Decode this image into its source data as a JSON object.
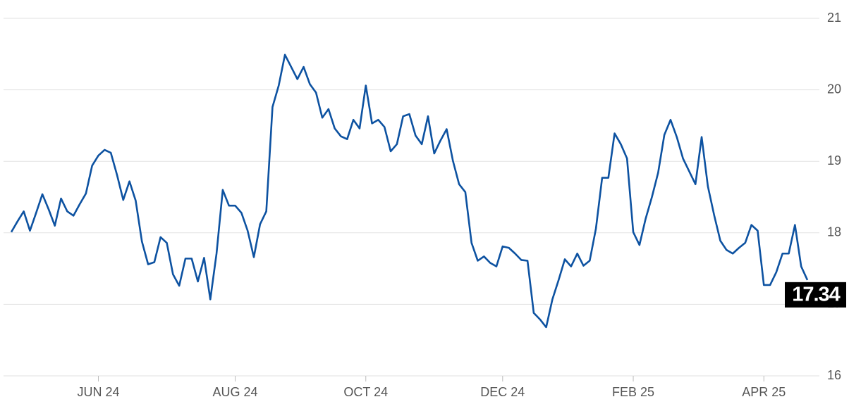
{
  "chart_data": {
    "type": "line",
    "categories": [
      null,
      null,
      null,
      null,
      null,
      null,
      null,
      null,
      null,
      null,
      null,
      null,
      null,
      null,
      "JUN 24",
      null,
      null,
      null,
      null,
      null,
      null,
      null,
      null,
      null,
      null,
      null,
      null,
      null,
      null,
      null,
      null,
      null,
      null,
      null,
      null,
      null,
      "AUG 24",
      null,
      null,
      null,
      null,
      null,
      null,
      null,
      null,
      null,
      null,
      null,
      null,
      null,
      null,
      null,
      null,
      null,
      null,
      null,
      null,
      "OCT 24",
      null,
      null,
      null,
      null,
      null,
      null,
      null,
      null,
      null,
      null,
      null,
      null,
      null,
      null,
      null,
      null,
      null,
      null,
      null,
      null,
      null,
      "DEC 24",
      null,
      null,
      null,
      null,
      null,
      null,
      null,
      null,
      null,
      null,
      null,
      null,
      null,
      null,
      null,
      null,
      null,
      null,
      null,
      null,
      "FEB 25",
      null,
      null,
      null,
      null,
      null,
      null,
      null,
      null,
      null,
      null,
      null,
      null,
      null,
      null,
      null,
      null,
      null,
      null,
      null,
      null,
      "APR 25",
      null,
      null,
      null,
      null,
      null,
      null,
      null
    ],
    "series": [
      {
        "color": "#0d52a1",
        "values": [
          18.01,
          18.16,
          18.3,
          18.03,
          18.28,
          18.54,
          18.33,
          18.1,
          18.48,
          18.3,
          18.24,
          18.4,
          18.55,
          18.94,
          19.08,
          19.16,
          19.12,
          18.81,
          18.46,
          18.72,
          18.45,
          17.88,
          17.56,
          17.59,
          17.94,
          17.86,
          17.42,
          17.26,
          17.64,
          17.64,
          17.32,
          17.65,
          17.07,
          17.71,
          18.6,
          18.38,
          18.38,
          18.28,
          18.03,
          17.66,
          18.12,
          18.3,
          19.76,
          20.06,
          20.49,
          20.32,
          20.15,
          20.32,
          20.08,
          19.96,
          19.61,
          19.73,
          19.46,
          19.35,
          19.31,
          19.58,
          19.46,
          20.06,
          19.53,
          19.58,
          19.48,
          19.14,
          19.24,
          19.63,
          19.66,
          19.36,
          19.24,
          19.63,
          19.11,
          19.29,
          19.45,
          19.01,
          18.68,
          18.57,
          17.86,
          17.61,
          17.67,
          17.58,
          17.53,
          17.81,
          17.79,
          17.71,
          17.62,
          17.61,
          16.88,
          16.79,
          16.68,
          17.07,
          17.34,
          17.63,
          17.53,
          17.71,
          17.54,
          17.61,
          18.06,
          18.77,
          18.77,
          19.39,
          19.24,
          19.04,
          18.01,
          17.83,
          18.2,
          18.5,
          18.84,
          19.37,
          19.58,
          19.34,
          19.04,
          18.86,
          18.68,
          19.34,
          18.65,
          18.25,
          17.89,
          17.76,
          17.71,
          17.79,
          17.86,
          18.11,
          18.03,
          17.27,
          17.27,
          17.45,
          17.71,
          17.71,
          18.11,
          17.53,
          17.34
        ]
      }
    ],
    "ylim": [
      16,
      21
    ],
    "yticks": [
      16,
      17,
      18,
      19,
      20,
      21
    ],
    "grid": true
  }
}
